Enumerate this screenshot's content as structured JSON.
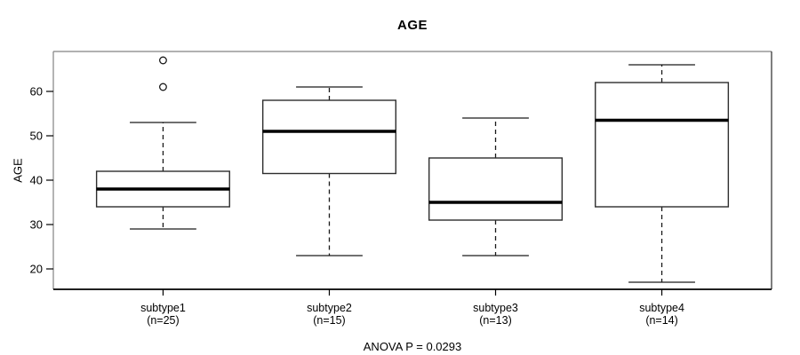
{
  "page": {
    "background": "#ffffff",
    "foreground": "#000000"
  },
  "chart_data": {
    "type": "boxplot",
    "title": "AGE",
    "xlabel": "",
    "ylabel": "AGE",
    "annotation": "ANOVA P = 0.0293",
    "y_ticks": [
      20,
      30,
      40,
      50,
      60
    ],
    "ylim": [
      15.4,
      69
    ],
    "grid": false,
    "legend": "none",
    "box_fill_color": "#ffffff",
    "box_stroke_color": "#2e2e2e",
    "median_color": "#000000",
    "whisker_color": "#1a1a1a",
    "groups": [
      {
        "label": "subtype1",
        "sublabel": "(n=25)",
        "n": 25,
        "whisker_low": 29,
        "q1": 34,
        "median": 38,
        "q3": 42,
        "whisker_high": 53,
        "outliers": [
          61,
          67
        ]
      },
      {
        "label": "subtype2",
        "sublabel": "(n=15)",
        "n": 15,
        "whisker_low": 23,
        "q1": 41.5,
        "median": 51,
        "q3": 58,
        "whisker_high": 61,
        "outliers": []
      },
      {
        "label": "subtype3",
        "sublabel": "(n=13)",
        "n": 13,
        "whisker_low": 23,
        "q1": 31,
        "median": 35,
        "q3": 45,
        "whisker_high": 54,
        "outliers": []
      },
      {
        "label": "subtype4",
        "sublabel": "(n=14)",
        "n": 14,
        "whisker_low": 17,
        "q1": 34,
        "median": 53.5,
        "q3": 62,
        "whisker_high": 66,
        "outliers": []
      }
    ]
  }
}
